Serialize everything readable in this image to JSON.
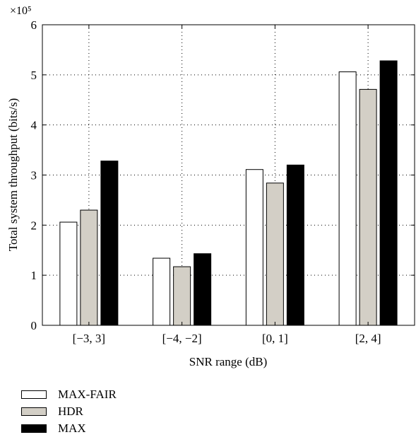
{
  "chart_data": {
    "type": "bar",
    "xlabel": "SNR range (dB)",
    "ylabel": "Total system throughput (bits/s)",
    "scale_label": "×10⁵",
    "categories": [
      "[−3, 3]",
      "[−4, −2]",
      "[0, 1]",
      "[2, 4]"
    ],
    "series": [
      {
        "name": "MAX-FAIR",
        "color": "#ffffff",
        "values": [
          2.06,
          1.34,
          3.11,
          5.06
        ]
      },
      {
        "name": "HDR",
        "color": "#d3cfc6",
        "values": [
          2.3,
          1.17,
          2.84,
          4.71
        ]
      },
      {
        "name": "MAX",
        "color": "#000000",
        "values": [
          3.28,
          1.43,
          3.2,
          5.28
        ]
      }
    ],
    "ylim": [
      0,
      6
    ],
    "yticks": [
      "0",
      "1",
      "2",
      "3",
      "4",
      "5",
      "6"
    ],
    "grid": true,
    "legend_position": "bottom"
  }
}
